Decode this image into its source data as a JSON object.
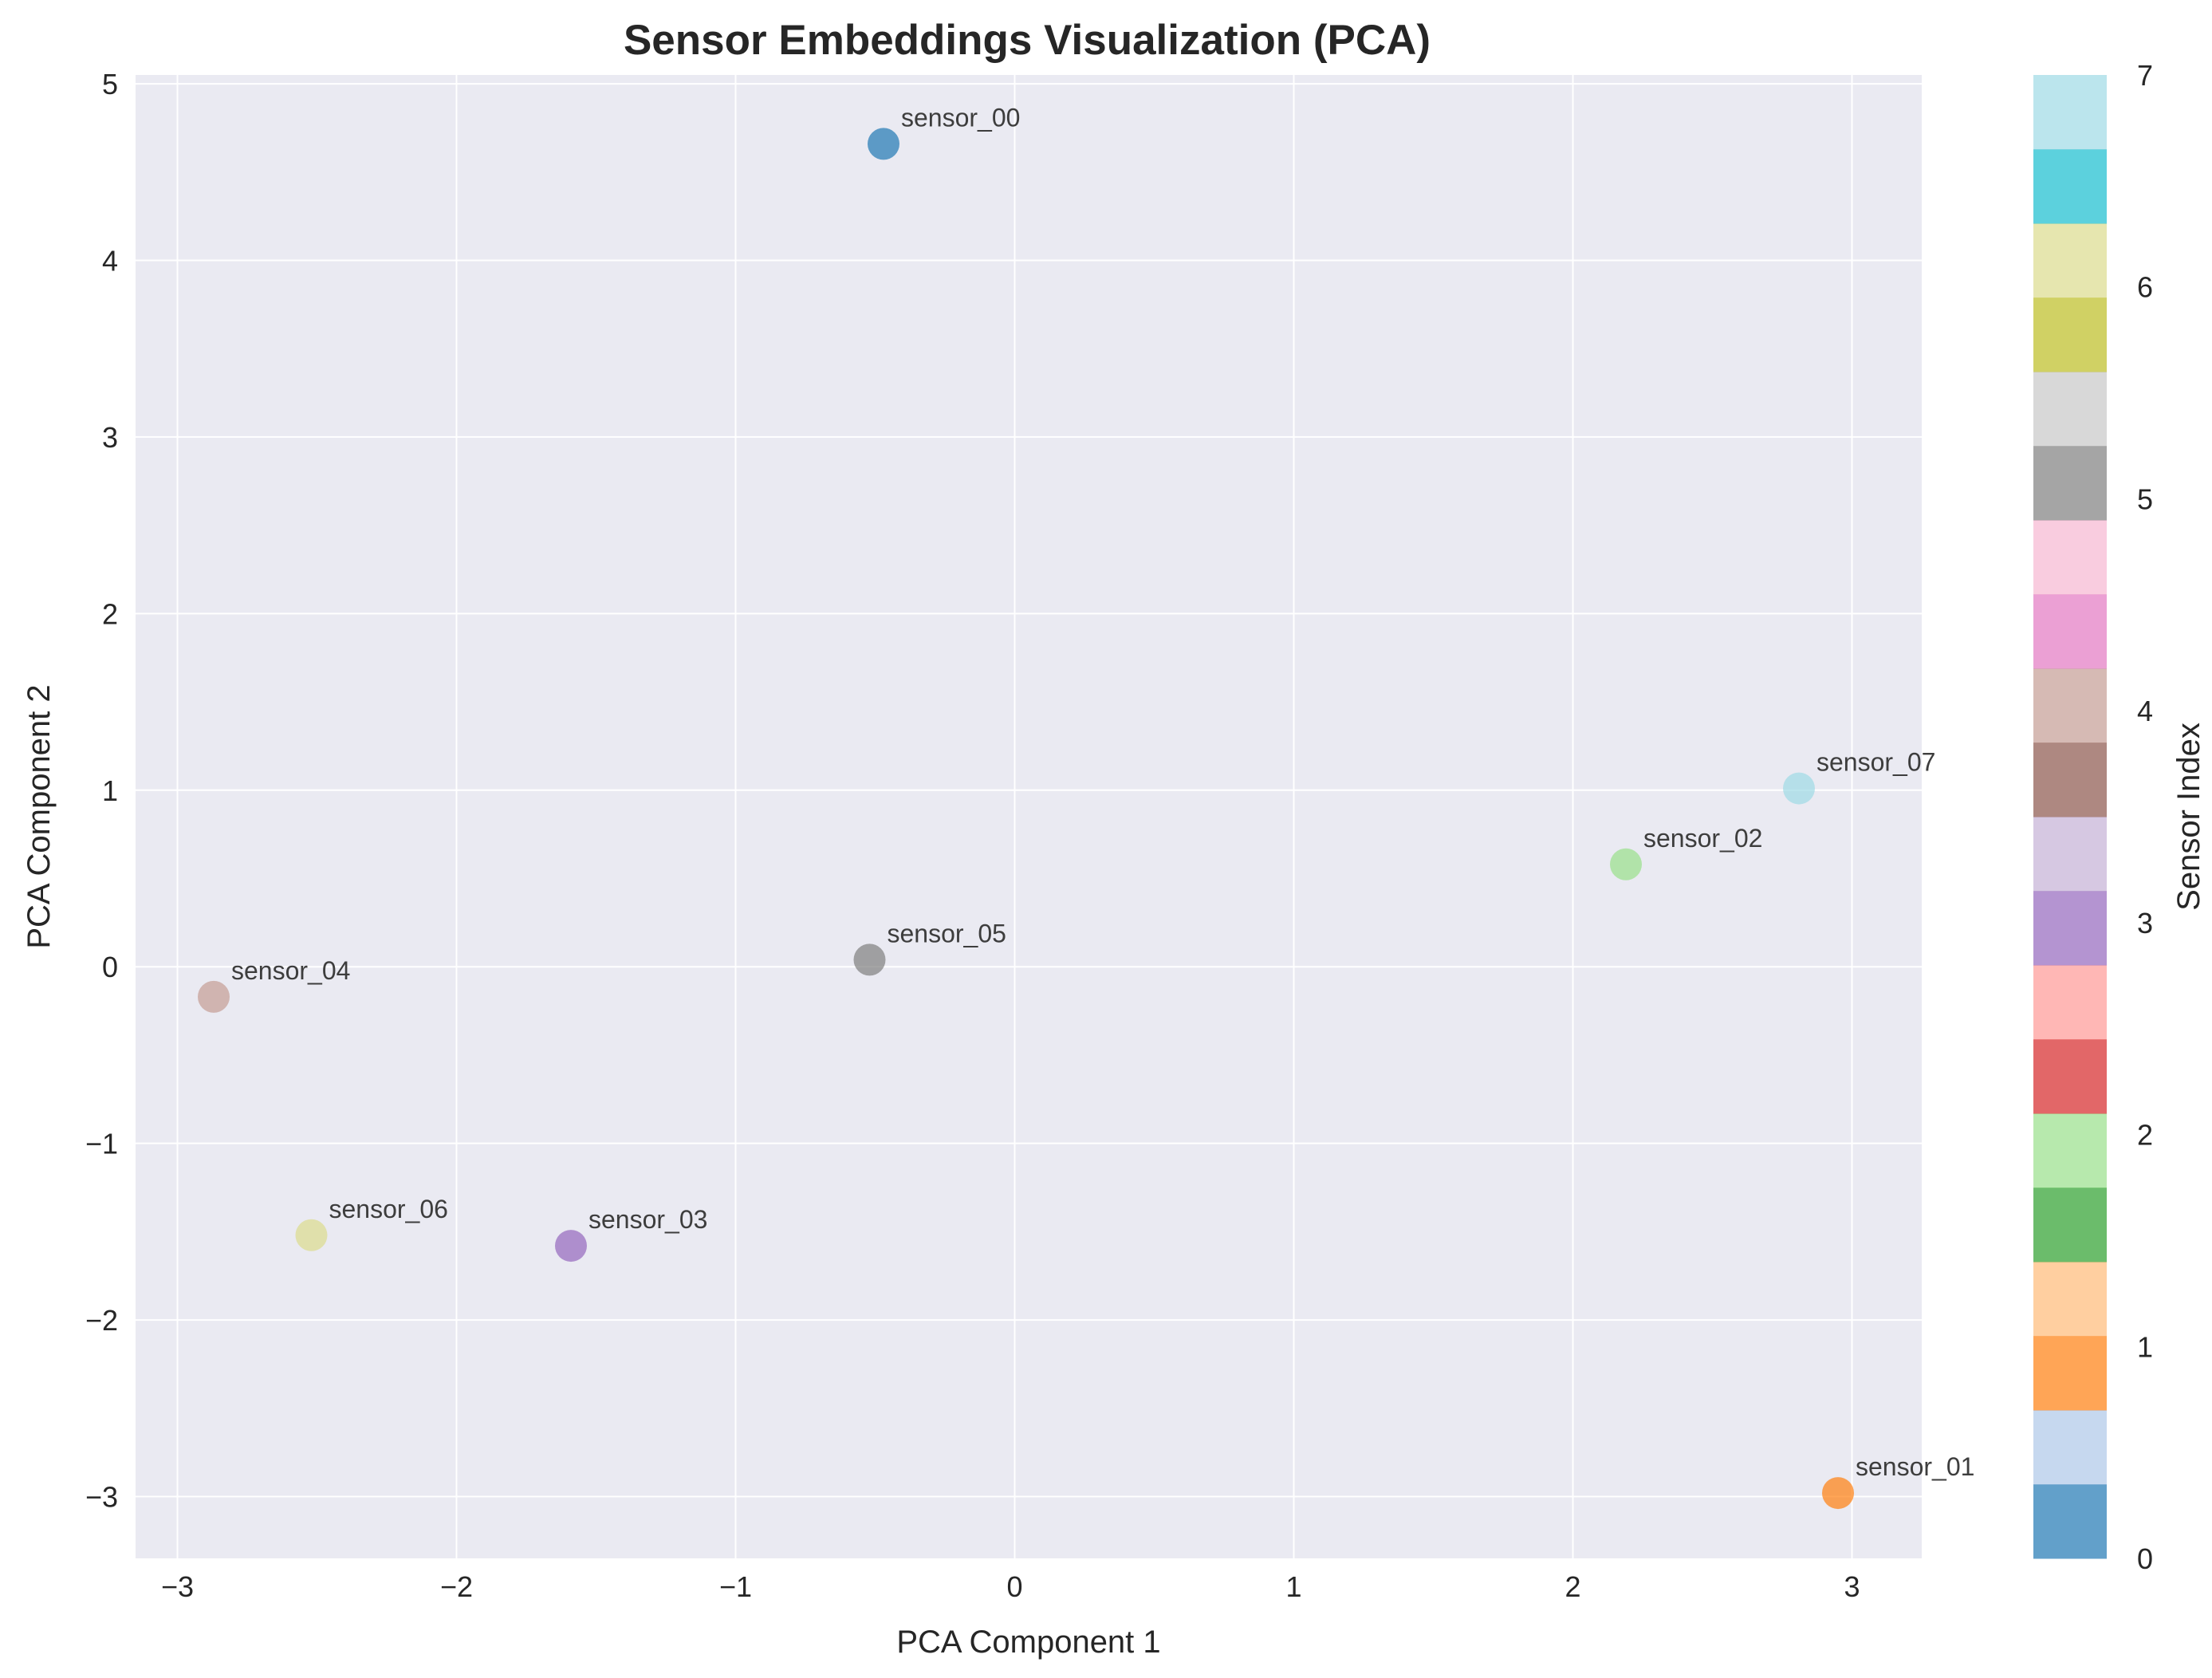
{
  "chart_data": {
    "type": "scatter",
    "title": "Sensor Embeddings Visualization (PCA)",
    "xlabel": "PCA Component 1",
    "ylabel": "PCA Component 2",
    "xlim": [
      -3.15,
      3.25
    ],
    "ylim": [
      -3.35,
      5.05
    ],
    "xticks": [
      -3,
      -2,
      -1,
      0,
      1,
      2,
      3
    ],
    "xtick_labels": [
      "−3",
      "−2",
      "−1",
      "0",
      "1",
      "2",
      "3"
    ],
    "yticks": [
      -3,
      -2,
      -1,
      0,
      1,
      2,
      3,
      4,
      5
    ],
    "ytick_labels": [
      "−3",
      "−2",
      "−1",
      "0",
      "1",
      "2",
      "3",
      "4",
      "5"
    ],
    "grid": true,
    "points": [
      {
        "label": "sensor_00",
        "x": -0.47,
        "y": 4.66,
        "index": 0,
        "color": "#1f77b4"
      },
      {
        "label": "sensor_01",
        "x": 2.95,
        "y": -2.98,
        "index": 1,
        "color": "#ff7f0e"
      },
      {
        "label": "sensor_02",
        "x": 2.19,
        "y": 0.58,
        "index": 2,
        "color": "#98df8a"
      },
      {
        "label": "sensor_03",
        "x": -1.59,
        "y": -1.58,
        "index": 3,
        "color": "#9467bd"
      },
      {
        "label": "sensor_04",
        "x": -2.87,
        "y": -0.17,
        "index": 4,
        "color": "#c49c94"
      },
      {
        "label": "sensor_05",
        "x": -0.52,
        "y": 0.04,
        "index": 5,
        "color": "#7f7f7f"
      },
      {
        "label": "sensor_06",
        "x": -2.52,
        "y": -1.52,
        "index": 6,
        "color": "#dbdb8d"
      },
      {
        "label": "sensor_07",
        "x": 2.81,
        "y": 1.01,
        "index": 7,
        "color": "#9edae5"
      }
    ],
    "colorbar": {
      "label": "Sensor Index",
      "range": [
        0,
        7
      ],
      "ticks": [
        0,
        1,
        2,
        3,
        4,
        5,
        6,
        7
      ],
      "tick_labels": [
        "0",
        "1",
        "2",
        "3",
        "4",
        "5",
        "6",
        "7"
      ],
      "colors": [
        "#1f77b4",
        "#aec7e8",
        "#ff7f0e",
        "#ffbb78",
        "#2ca02c",
        "#98df8a",
        "#d62728",
        "#ff9896",
        "#9467bd",
        "#c5b0d5",
        "#8c564b",
        "#c49c94",
        "#e377c2",
        "#f7b6d2",
        "#7f7f7f",
        "#c7c7c7",
        "#bcbd22",
        "#dbdb8d",
        "#17becf",
        "#9edae5"
      ]
    },
    "style": {
      "plot_background": "#eaeaf2",
      "grid_color": "#ffffff",
      "point_opacity": 0.7,
      "colorbar_opacity": 0.7
    }
  }
}
